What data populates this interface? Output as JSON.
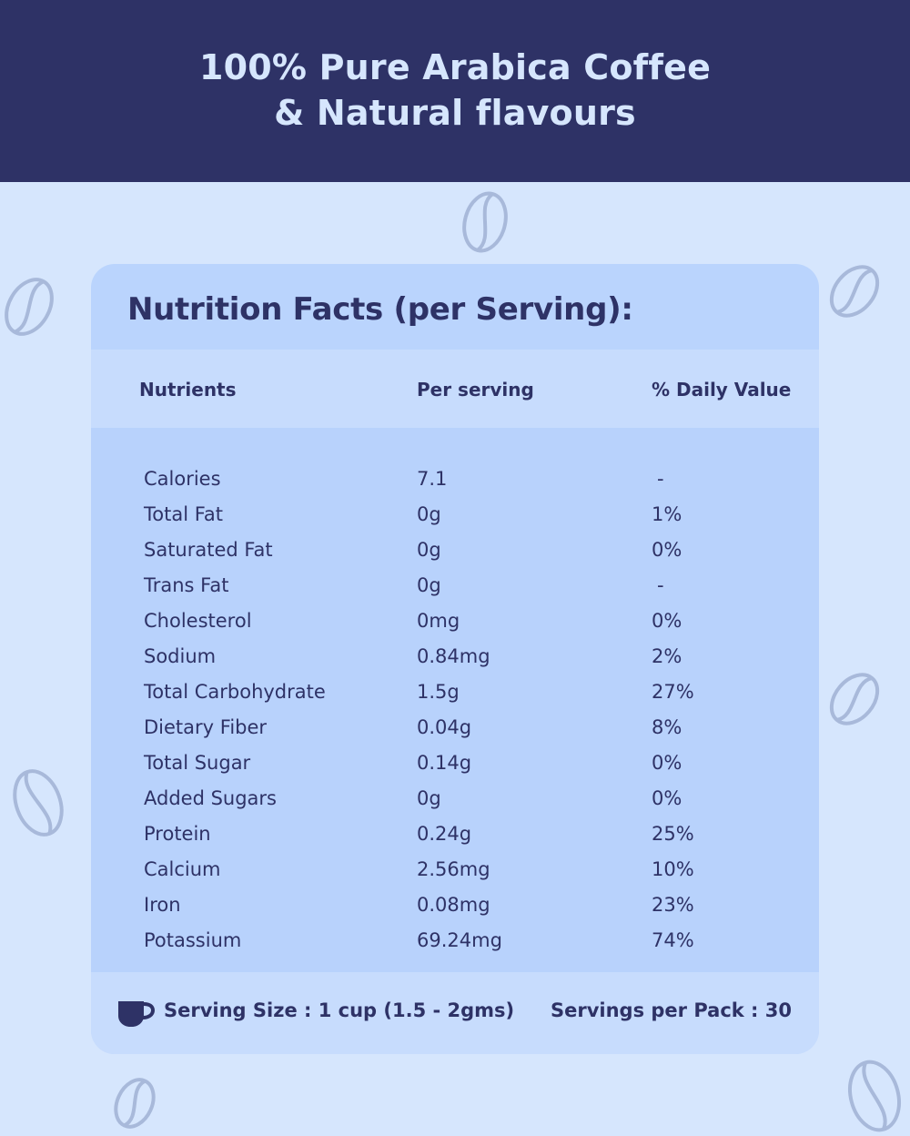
{
  "header": {
    "line1": "100% Pure Arabica Coffee",
    "line2": "& Natural flavours"
  },
  "card": {
    "title": "Nutrition Facts (per Serving):",
    "columns": [
      "Nutrients",
      "Per serving",
      "% Daily Value"
    ],
    "rows": [
      {
        "nutrient": "Calories",
        "per_serving": "7.1",
        "daily_value": "-"
      },
      {
        "nutrient": "Total Fat",
        "per_serving": "0g",
        "daily_value": "1%"
      },
      {
        "nutrient": "Saturated Fat",
        "per_serving": "0g",
        "daily_value": "0%"
      },
      {
        "nutrient": "Trans Fat",
        "per_serving": "0g",
        "daily_value": "-"
      },
      {
        "nutrient": "Cholesterol",
        "per_serving": "0mg",
        "daily_value": "0%"
      },
      {
        "nutrient": "Sodium",
        "per_serving": "0.84mg",
        "daily_value": "2%"
      },
      {
        "nutrient": "Total Carbohydrate",
        "per_serving": "1.5g",
        "daily_value": "27%"
      },
      {
        "nutrient": "Dietary Fiber",
        "per_serving": "0.04g",
        "daily_value": "8%"
      },
      {
        "nutrient": "Total Sugar",
        "per_serving": "0.14g",
        "daily_value": "0%"
      },
      {
        "nutrient": "Added Sugars",
        "per_serving": "0g",
        "daily_value": "0%"
      },
      {
        "nutrient": "Protein",
        "per_serving": "0.24g",
        "daily_value": "25%"
      },
      {
        "nutrient": "Calcium",
        "per_serving": "2.56mg",
        "daily_value": "10%"
      },
      {
        "nutrient": "Iron",
        "per_serving": "0.08mg",
        "daily_value": "23%"
      },
      {
        "nutrient": "Potassium",
        "per_serving": "69.24mg",
        "daily_value": "74%"
      }
    ],
    "footer": {
      "serving_size": "Serving Size : 1 cup (1.5 - 2gms)",
      "servings_per_pack": "Servings per Pack : 30",
      "icon": "coffee-cup-icon"
    }
  },
  "decor": {
    "icon": "coffee-bean-icon"
  },
  "colors": {
    "navy": "#2e3266",
    "background": "#d6e6fd",
    "card": "#bad4fd",
    "header_band": "#c7dcfd"
  }
}
